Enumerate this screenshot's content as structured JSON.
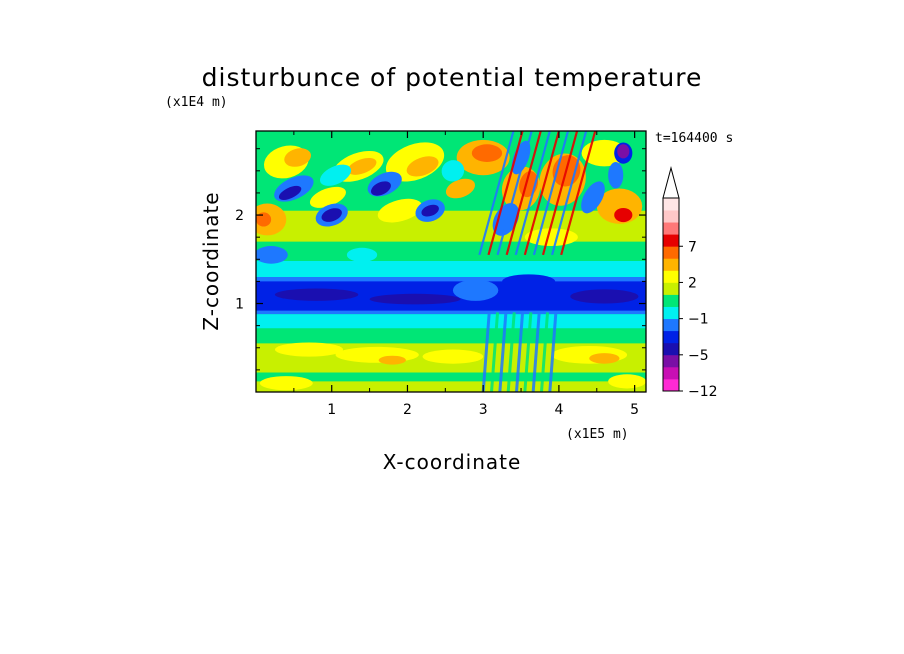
{
  "chart_data": {
    "type": "heatmap",
    "title": "disturbunce of potential temperature",
    "xlabel": "X-coordinate",
    "ylabel": "Z-coordinate",
    "x_unit": "(x1E5 m)",
    "y_unit": "(x1E4 m)",
    "time_label": "t=164400 s",
    "xlim": [
      0,
      5.15
    ],
    "ylim": [
      0,
      2.95
    ],
    "x_ticks": [
      1,
      2,
      3,
      4,
      5
    ],
    "y_ticks": [
      1,
      2
    ],
    "colorbar": {
      "levels": [
        -12,
        -10,
        -8,
        -5,
        -4,
        -3,
        -1,
        0,
        1,
        2,
        3,
        5,
        7,
        9,
        11
      ],
      "tick_labels": [
        "-12",
        "-5",
        "-1",
        "2",
        "7"
      ],
      "tick_values": [
        -12,
        -5,
        -1,
        2,
        7
      ],
      "colors": [
        "#ff2ad4",
        "#c80fb4",
        "#7a0fa6",
        "#1a0fb0",
        "#0022e6",
        "#1e78ff",
        "#00f0f0",
        "#00e676",
        "#c8f000",
        "#ffff00",
        "#ffb400",
        "#ff6a00",
        "#e60000",
        "#ff7878",
        "#ffc8c8",
        "#ffe6e6"
      ],
      "extend": "max"
    }
  }
}
